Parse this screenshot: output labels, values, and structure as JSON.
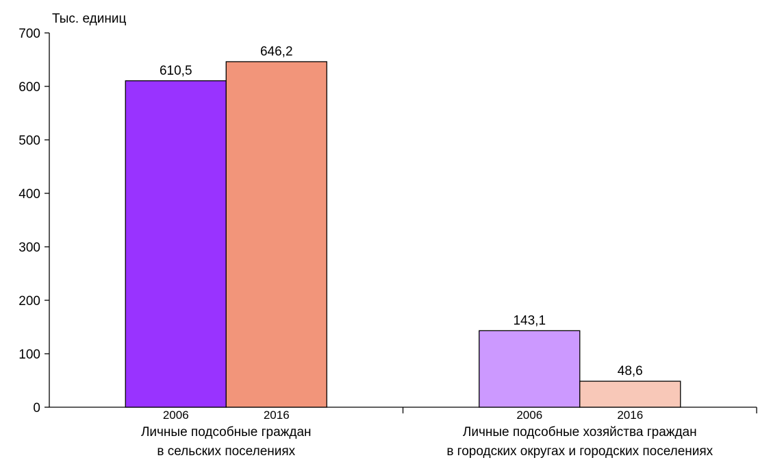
{
  "chart_data": {
    "type": "bar",
    "ylabel": "Тыс. единиц",
    "ylim": [
      0,
      700
    ],
    "yticks": [
      0,
      100,
      200,
      300,
      400,
      500,
      600,
      700
    ],
    "grid": false,
    "groups": [
      {
        "label_lines": [
          "Личные подсобные граждан",
          "в сельских поселениях"
        ],
        "bars": [
          {
            "year": "2006",
            "value": 610.5,
            "value_label": "610,5",
            "color": "#9933ff"
          },
          {
            "year": "2016",
            "value": 646.2,
            "value_label": "646,2",
            "color": "#f2957a"
          }
        ]
      },
      {
        "label_lines": [
          "Личные подсобные хозяйства граждан",
          "в городских округах и городских поселениях"
        ],
        "bars": [
          {
            "year": "2006",
            "value": 143.1,
            "value_label": "143,1",
            "color": "#cc99ff"
          },
          {
            "year": "2016",
            "value": 48.6,
            "value_label": "48,6",
            "color": "#f8c8b8"
          }
        ]
      }
    ]
  }
}
